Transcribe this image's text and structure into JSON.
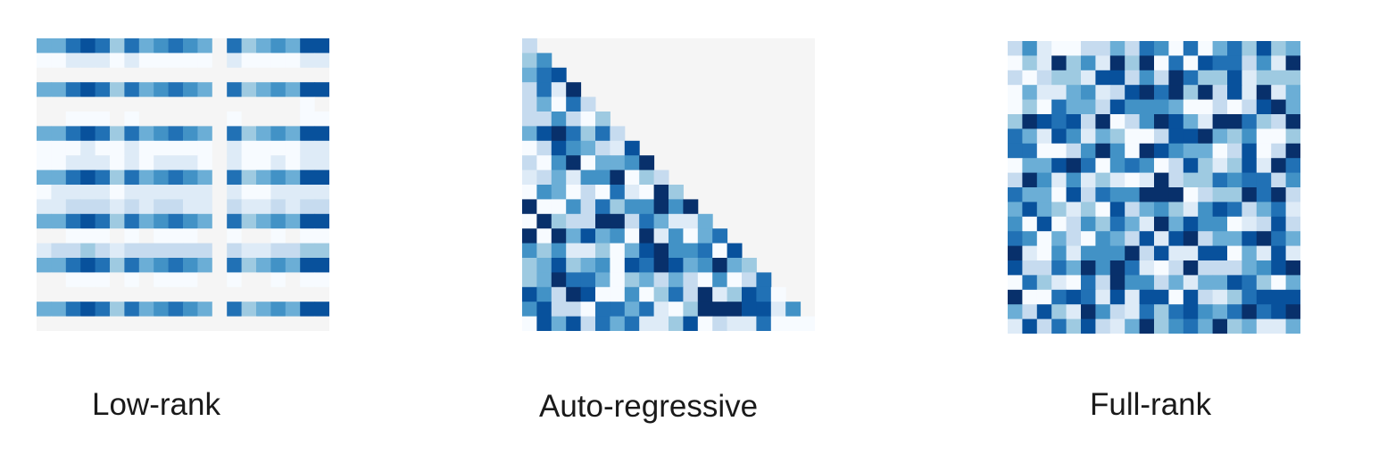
{
  "panels": [
    {
      "id": "low-rank",
      "label": "Low-rank",
      "pattern": "low-rank",
      "grid_size": 20,
      "masked_color": "#f5f5f5",
      "seed": 11
    },
    {
      "id": "auto-regressive",
      "label": "Auto-regressive",
      "pattern": "lower-triangular",
      "grid_size": 20,
      "masked_color": "#f5f5f5",
      "seed": 23
    },
    {
      "id": "full-rank",
      "label": "Full-rank",
      "pattern": "full-random",
      "grid_size": 20,
      "masked_color": "#f5f5f5",
      "seed": 37
    }
  ],
  "colormap": [
    "#f7fbff",
    "#deebf7",
    "#c6dbef",
    "#9ecae1",
    "#6baed6",
    "#4292c6",
    "#2171b5",
    "#08519c",
    "#08306b"
  ]
}
